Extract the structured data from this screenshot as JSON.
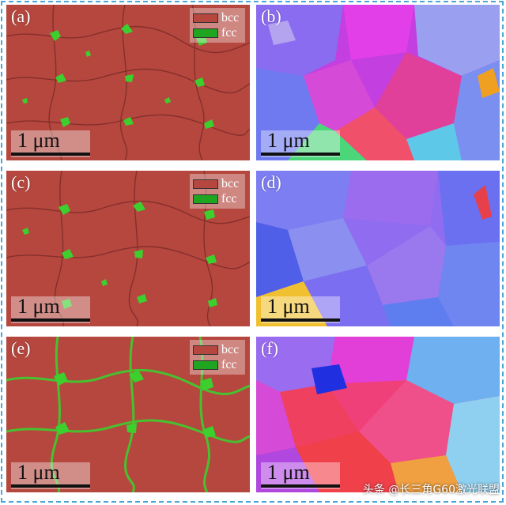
{
  "panels": [
    {
      "label": "(a)",
      "kind": "phase"
    },
    {
      "label": "(b)",
      "kind": "orientation"
    },
    {
      "label": "(c)",
      "kind": "phase"
    },
    {
      "label": "(d)",
      "kind": "orientation"
    },
    {
      "label": "(e)",
      "kind": "phase"
    },
    {
      "label": "(f)",
      "kind": "orientation"
    }
  ],
  "legend": {
    "bcc_label": "bcc",
    "fcc_label": "fcc",
    "bcc_color": "#b5473f",
    "fcc_color": "#1fa51f"
  },
  "scale_bar": {
    "label": "1 μm"
  },
  "watermark": "头条 @长三角G60激光联盟",
  "colors": {
    "phase_bg": "#b5473f",
    "phase_boundary": "#7a2a26",
    "fcc_green": "#3ccf2e",
    "frame_border": "#4aa6d8"
  }
}
